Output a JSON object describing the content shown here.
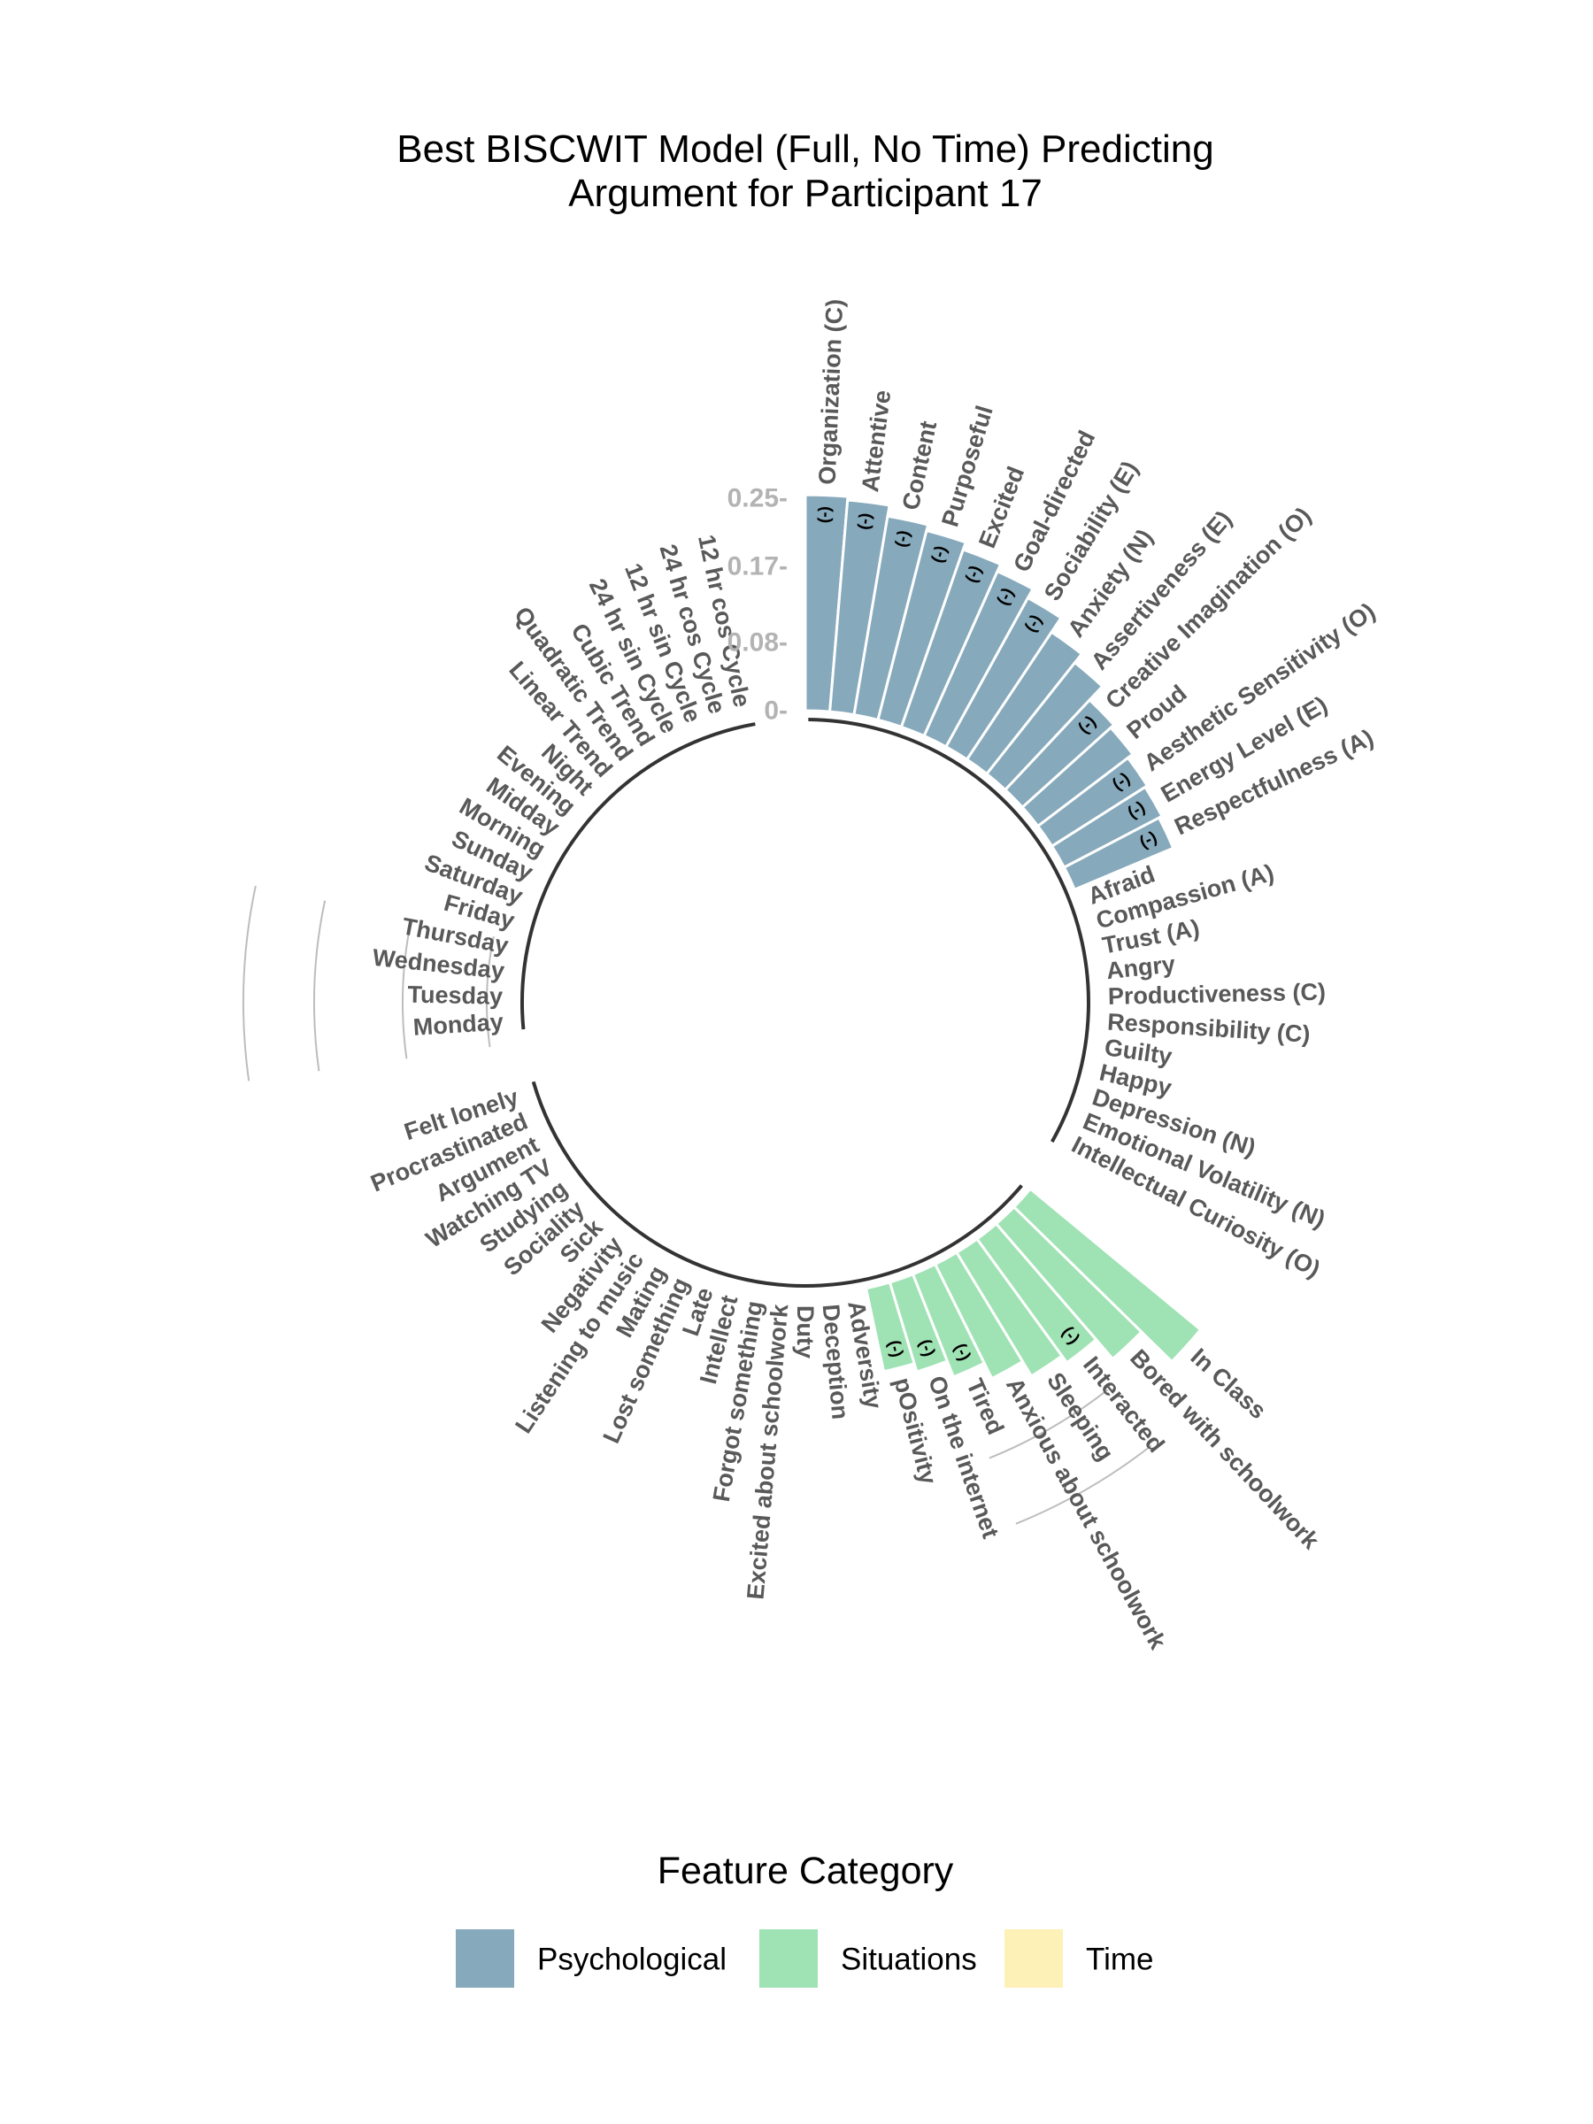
{
  "chart_data": {
    "type": "bar",
    "subtype": "circular",
    "title": [
      "Best BISCWIT Model (Full, No Time) Predicting",
      "Argument for Participant 17"
    ],
    "yticks": [
      0,
      0.08,
      0.17,
      0.25
    ],
    "ytick_labels": [
      "0-",
      "0.08-",
      "0.17-",
      "0.25-"
    ],
    "ylim": [
      0,
      0.25
    ],
    "grid": false,
    "legend": {
      "title": "Feature Category",
      "position": "bottom",
      "entries": [
        {
          "label": "Psychological",
          "color": "#86a9bb"
        },
        {
          "label": "Situations",
          "color": "#9fe2b4"
        },
        {
          "label": "Time",
          "color": "#fdf1b8"
        }
      ]
    },
    "groups": [
      {
        "name": "Psychological",
        "color": "#86a9bb",
        "categories": [
          "Organization (C)",
          "Attentive",
          "Content",
          "Purposeful",
          "Excited",
          "Goal-directed",
          "Sociability (E)",
          "Anxiety (N)",
          "Assertiveness (E)",
          "Creative Imagination (O)",
          "Proud",
          "Aesthetic Sensitivity (O)",
          "Energy Level (E)",
          "Respectfulness (A)",
          "Afraid",
          "Compassion (A)",
          "Trust (A)",
          "Angry",
          "Productiveness (C)",
          "Responsibility (C)",
          "Guilty",
          "Happy",
          "Depression (N)",
          "Emotional Volatility (N)",
          "Intellectual Curiosity (O)"
        ],
        "values": [
          0.254,
          0.25,
          0.237,
          0.23,
          0.221,
          0.212,
          0.2,
          0.18,
          0.167,
          0.145,
          0.14,
          0.133,
          0.13,
          0.126,
          0,
          0,
          0,
          0,
          0,
          0,
          0,
          0,
          0,
          0,
          0
        ],
        "signs": [
          "(-)",
          "(-)",
          "(-)",
          "(-)",
          "(-)",
          "(-)",
          "(-)",
          "",
          "",
          "(-)",
          "",
          "(-)",
          "(-)",
          "(-)",
          "",
          "",
          "",
          "",
          "",
          "",
          "",
          "",
          "",
          "",
          ""
        ]
      },
      {
        "name": "Situations",
        "color": "#9fe2b4",
        "categories": [
          "In Class",
          "Bored with schoolwork",
          "Interacted",
          "Sleeping",
          "Anxious about schoolwork",
          "Tired",
          "On the internet",
          "pOsitivity",
          "Adversity",
          "Deception",
          "Duty",
          "Excited about schoolwork",
          "Forgot something",
          "Intellect",
          "Late",
          "Lost something",
          "Mating",
          "Listening to music",
          "Negativity",
          "Sick",
          "Sociality",
          "Studying",
          "Watching TV",
          "Argument",
          "Procrastinated",
          "Felt lonely"
        ],
        "values": [
          0.26,
          0.21,
          0.18,
          0.17,
          0.15,
          0.13,
          0.11,
          0.1,
          0,
          0,
          0,
          0,
          0,
          0,
          0,
          0,
          0,
          0,
          0,
          0,
          0,
          0,
          0,
          0,
          0,
          0
        ],
        "signs": [
          "",
          "",
          "(-)",
          "",
          "",
          "(-)",
          "(-)",
          "(-)",
          "",
          "",
          "",
          "",
          "",
          "",
          "",
          "",
          "",
          "",
          "",
          "",
          "",
          "",
          "",
          "",
          "",
          ""
        ]
      },
      {
        "name": "Time",
        "color": "#fdf1b8",
        "categories": [
          "Monday",
          "Tuesday",
          "Wednesday",
          "Thursday",
          "Friday",
          "Saturday",
          "Sunday",
          "Morning",
          "Midday",
          "Evening",
          "Night",
          "Linear Trend",
          "Quadratic Trend",
          "Cubic Trend",
          "24 hr sin Cycle",
          "12 hr sin Cycle",
          "24 hr cos Cycle",
          "12 hr cos Cycle"
        ],
        "values": [
          0,
          0,
          0,
          0,
          0,
          0,
          0,
          0,
          0,
          0,
          0,
          0,
          0,
          0,
          0,
          0,
          0,
          0
        ],
        "signs": [
          "",
          "",
          "",
          "",
          "",
          "",
          "",
          "",
          "",
          "",
          "",
          "",
          "",
          "",
          "",
          "",
          "",
          ""
        ]
      }
    ]
  }
}
